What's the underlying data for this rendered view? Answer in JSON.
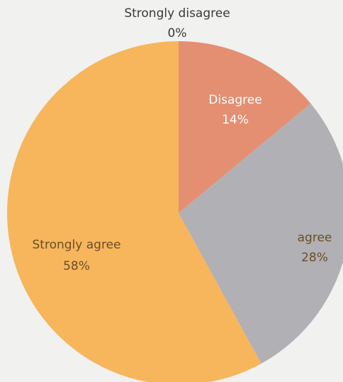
{
  "chart_data": {
    "type": "pie",
    "title": "",
    "legend": "none",
    "start_angle_deg": 0,
    "direction": "clockwise",
    "slices": [
      {
        "name": "Strongly disagree",
        "value": 0,
        "label": "0%",
        "color": "#6f8fc6"
      },
      {
        "name": "Disagree",
        "value": 14,
        "label": "14%",
        "color": "#e58f72"
      },
      {
        "name": "agree",
        "value": 28,
        "label": "28%",
        "color": "#b1b0b4"
      },
      {
        "name": "Strongly agree",
        "value": 58,
        "label": "58%",
        "color": "#f7b55c"
      }
    ]
  },
  "colors": {
    "background": "#f1f1ef",
    "label_text": "#3a3a3a"
  }
}
